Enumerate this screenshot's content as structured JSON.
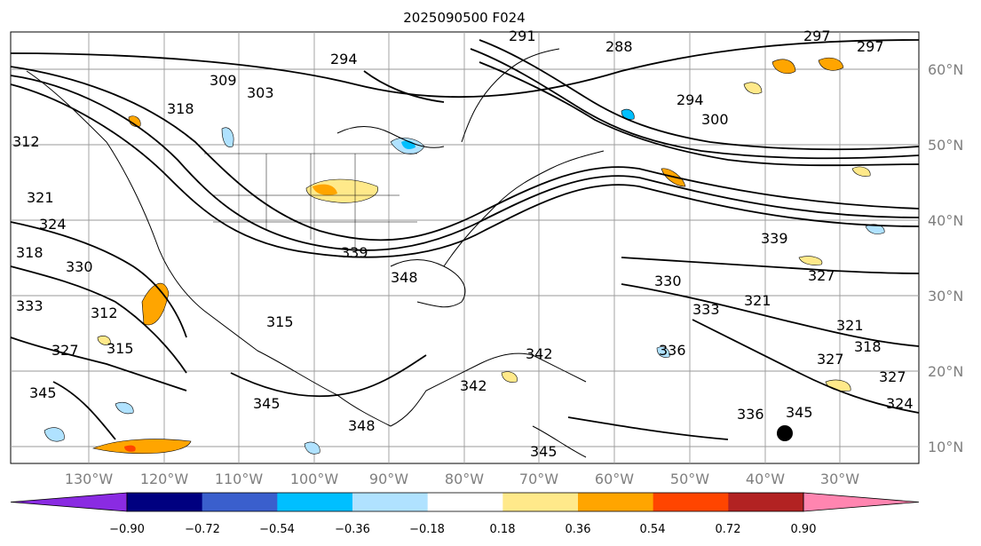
{
  "title": "2025090500 F024",
  "lat_labels": [
    "60°N",
    "50°N",
    "40°N",
    "30°N",
    "20°N",
    "10°N"
  ],
  "lon_labels": [
    "130°W",
    "120°W",
    "110°W",
    "100°W",
    "90°W",
    "80°W",
    "70°W",
    "60°W",
    "50°W",
    "40°W",
    "30°W"
  ],
  "colorbar": {
    "ticks": [
      "−0.90",
      "−0.72",
      "−0.54",
      "−0.36",
      "−0.18",
      "0.18",
      "0.36",
      "0.54",
      "0.72",
      "0.90"
    ],
    "colors": [
      "#8a2be2",
      "#000080",
      "#3a5fcd",
      "#00bfff",
      "#b0e2ff",
      "#ffffff",
      "#ffe98a",
      "#ffa500",
      "#ff4500",
      "#b22222",
      "#ff85b0"
    ]
  },
  "contour_labels": [
    "297",
    "297",
    "294",
    "288",
    "291",
    "294",
    "300",
    "303",
    "309",
    "318",
    "312",
    "321",
    "324",
    "318",
    "330",
    "333",
    "312",
    "315",
    "327",
    "315",
    "345",
    "345",
    "348",
    "339",
    "321",
    "327",
    "330",
    "333",
    "336",
    "342",
    "342",
    "345",
    "327",
    "321",
    "318",
    "327",
    "324",
    "336",
    "348",
    "345",
    "339"
  ],
  "marker": "storm-center-dot"
}
